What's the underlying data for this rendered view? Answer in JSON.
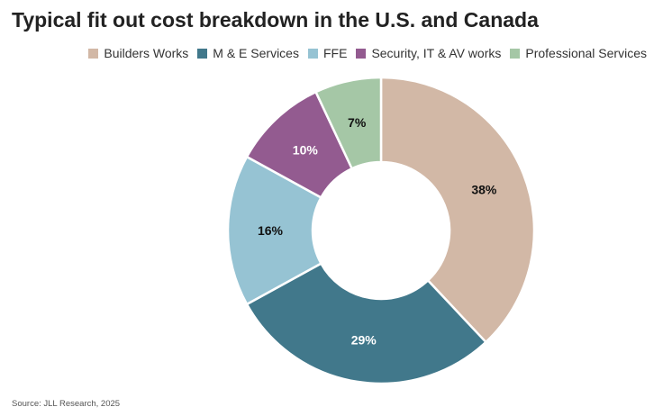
{
  "chart_data": {
    "type": "pie",
    "donut": true,
    "title": "Typical fit out cost breakdown in the U.S. and Canada",
    "series": [
      {
        "name": "Builders Works",
        "value": 38,
        "label": "38%",
        "color": "#d2b8a6",
        "label_color": "#111111"
      },
      {
        "name": "M & E Services",
        "value": 29,
        "label": "29%",
        "color": "#41788b",
        "label_color": "#ffffff"
      },
      {
        "name": "FFE",
        "value": 16,
        "label": "16%",
        "color": "#96c3d3",
        "label_color": "#111111"
      },
      {
        "name": "Security, IT & AV works",
        "value": 10,
        "label": "10%",
        "color": "#935b90",
        "label_color": "#ffffff"
      },
      {
        "name": "Professional Services",
        "value": 7,
        "label": "7%",
        "color": "#a5c7a6",
        "label_color": "#111111"
      }
    ],
    "legend_position": "top-right"
  },
  "source": "Source: JLL Research, 2025"
}
